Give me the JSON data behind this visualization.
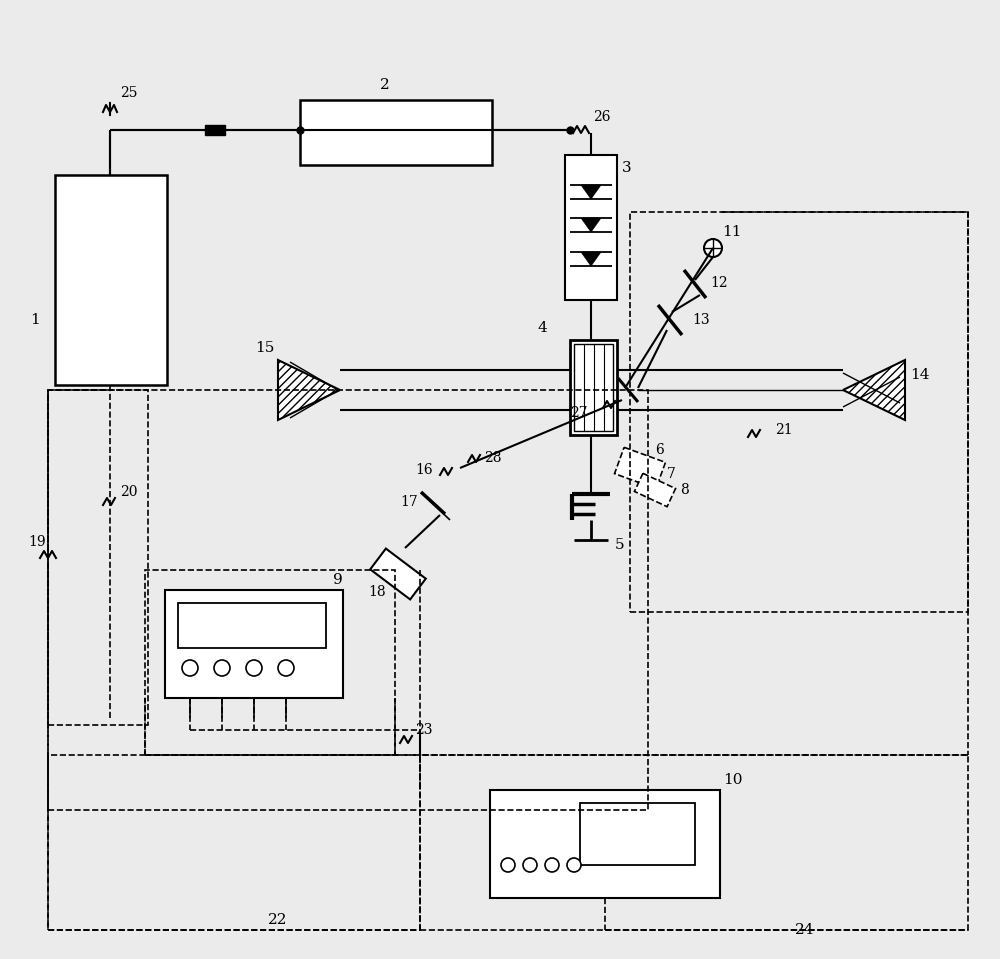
{
  "bg": "#ebebeb",
  "fig_w": 10.0,
  "fig_h": 9.59,
  "dpi": 100
}
